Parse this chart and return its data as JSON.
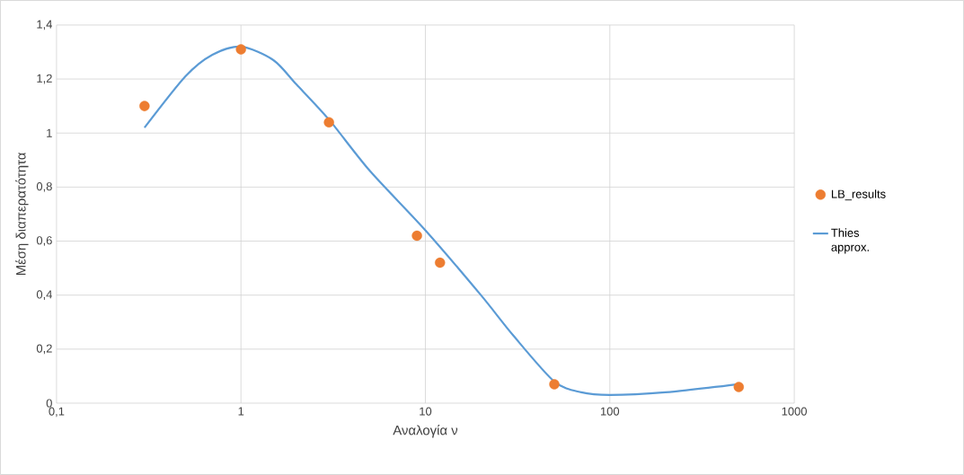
{
  "chart_data": {
    "type": "scatter",
    "xlabel": "Αναλογία ν",
    "ylabel": "Μέση διαπερατότητα",
    "log": "x",
    "xlim": [
      0.1,
      1000
    ],
    "ylim": [
      0,
      1.4
    ],
    "xticks": [
      {
        "value": 0.1,
        "label": "0,1"
      },
      1,
      10,
      100,
      1000
    ],
    "yticks": [
      0,
      {
        "value": 0.2,
        "label": "0,2"
      },
      {
        "value": 0.4,
        "label": "0,4"
      },
      {
        "value": 0.6,
        "label": "0,6"
      },
      {
        "value": 0.8,
        "label": "0,8"
      },
      1,
      {
        "value": 1.2,
        "label": "1,2"
      },
      {
        "value": 1.4,
        "label": "1,4"
      }
    ],
    "grid": true,
    "legend": "right",
    "series": [
      {
        "name": "LB_results",
        "type": "scatter",
        "marker": "circle",
        "color": "#ed7d31",
        "x": [
          0.3,
          1,
          3,
          9,
          12,
          50,
          500
        ],
        "values": [
          1.1,
          1.31,
          1.04,
          0.62,
          0.52,
          0.07,
          0.06
        ]
      },
      {
        "name": "Thies approx.",
        "type": "line",
        "marker": "none",
        "color": "#5b9bd5",
        "x": [
          0.3,
          0.5,
          0.7,
          1,
          1.5,
          2,
          3,
          5,
          10,
          20,
          30,
          50,
          70,
          100,
          200,
          500
        ],
        "values": [
          1.02,
          1.21,
          1.29,
          1.32,
          1.27,
          1.18,
          1.05,
          0.86,
          0.64,
          0.4,
          0.25,
          0.08,
          0.04,
          0.03,
          0.04,
          0.07
        ]
      }
    ]
  }
}
